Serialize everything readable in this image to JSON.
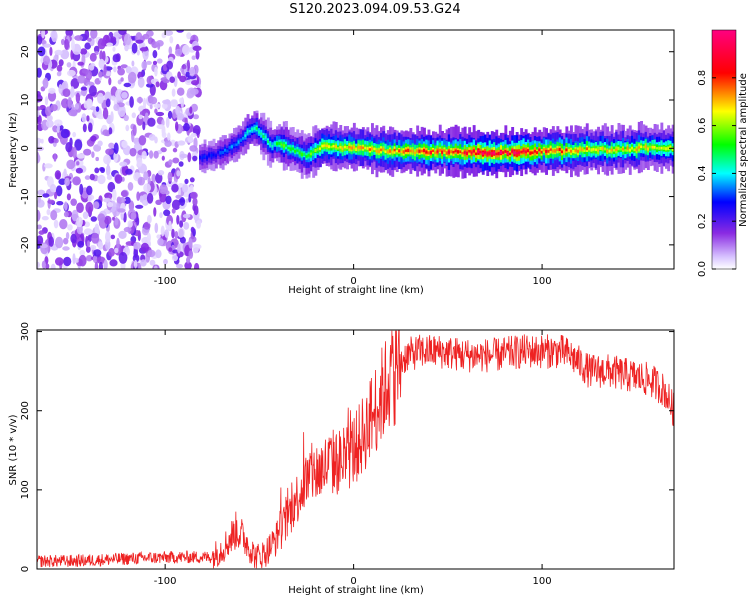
{
  "title": "S120.2023.094.09.53.G24",
  "chart_data": [
    {
      "type": "heatmap",
      "xlabel": "Height of straight line (km)",
      "ylabel": "Frequency (Hz)",
      "xlim": [
        -168,
        170
      ],
      "ylim": [
        -25,
        24.5
      ],
      "xticks": [
        -100,
        0,
        100
      ],
      "yticks": [
        -20,
        -10,
        0,
        10,
        20
      ],
      "colorbar": {
        "label": "Normalized spectral amplitude",
        "range": [
          0.0,
          1.0
        ],
        "ticks": [
          "0.0",
          "0.2",
          "0.4",
          "0.6",
          "0.8"
        ],
        "colors": [
          "#e8d8ff",
          "#8a2be2",
          "#0000ff",
          "#00ffff",
          "#00ff00",
          "#ffff00",
          "#ff0000",
          "#ff00aa"
        ]
      },
      "noise_region": {
        "x_range": [
          -168,
          -82
        ],
        "peak_amplitude": 0.18
      },
      "ridge": {
        "x": [
          -82,
          -75,
          -68,
          -62,
          -56,
          -52,
          -48,
          -44,
          -40,
          -35,
          -30,
          -25,
          -20,
          -15,
          -10,
          -5,
          0,
          10,
          20,
          30,
          40,
          50,
          60,
          70,
          80,
          90,
          100,
          110,
          120,
          130,
          140,
          150,
          160,
          170
        ],
        "frequency": [
          -2,
          -1.5,
          -0.5,
          1,
          3.5,
          4,
          2.5,
          0.5,
          0.8,
          0.2,
          -0.8,
          -1.8,
          -0.2,
          0.5,
          0.2,
          0.1,
          0,
          -0.3,
          -0.5,
          -0.6,
          -0.7,
          -0.7,
          -0.8,
          -0.9,
          -0.9,
          -0.8,
          -0.5,
          -0.5,
          -0.4,
          -0.3,
          -0.3,
          0,
          0.2,
          0
        ],
        "amplitude": [
          0.28,
          0.3,
          0.33,
          0.37,
          0.45,
          0.5,
          0.5,
          0.48,
          0.55,
          0.55,
          0.55,
          0.55,
          0.6,
          0.7,
          0.7,
          0.7,
          0.75,
          0.75,
          0.75,
          0.8,
          0.85,
          0.85,
          0.9,
          0.95,
          0.95,
          0.95,
          0.85,
          0.8,
          0.75,
          0.7,
          0.7,
          0.7,
          0.65,
          0.6
        ]
      }
    },
    {
      "type": "line",
      "xlabel": "Height of straight line (km)",
      "ylabel": "SNR (10 * v/v)",
      "xlim": [
        -168,
        170
      ],
      "ylim": [
        0,
        302
      ],
      "xticks": [
        -100,
        0,
        100
      ],
      "yticks": [
        0,
        100,
        200,
        300
      ],
      "series": [
        {
          "color": "#ee2222",
          "x": [
            -168,
            -150,
            -130,
            -110,
            -90,
            -75,
            -68,
            -62,
            -57,
            -52,
            -47,
            -42,
            -37,
            -32,
            -27,
            -22,
            -17,
            -12,
            -7,
            -2,
            3,
            8,
            13,
            18,
            23,
            28,
            35,
            45,
            60,
            75,
            90,
            100,
            110,
            115,
            125,
            135,
            145,
            155,
            160,
            165,
            170
          ],
          "y": [
            10,
            10,
            12,
            14,
            15,
            15,
            30,
            50,
            35,
            15,
            20,
            35,
            55,
            80,
            105,
            120,
            125,
            135,
            135,
            145,
            160,
            185,
            210,
            235,
            255,
            270,
            275,
            275,
            270,
            270,
            275,
            275,
            275,
            270,
            250,
            250,
            245,
            240,
            235,
            225,
            200
          ]
        }
      ]
    }
  ]
}
